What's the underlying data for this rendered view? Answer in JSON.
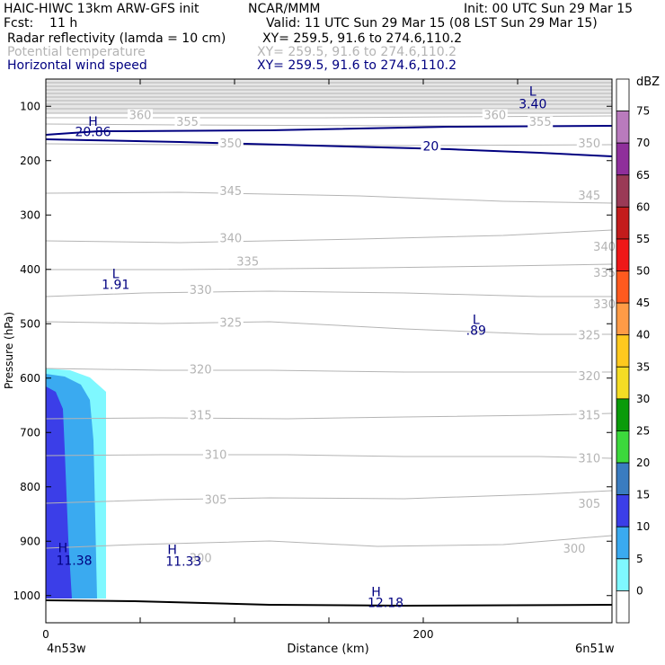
{
  "header": {
    "line1_left": "HAIC-HIWC 13km ARW-GFS init",
    "line1_mid": "NCAR/MMM",
    "line1_right": "Init: 00 UTC Sun 29 Mar 15",
    "line2_left": "Fcst:    11 h",
    "line2_right": "Valid: 11 UTC Sun 29 Mar 15 (08 LST Sun 29 Mar 15)",
    "field1": "Radar reflectivity (lamda = 10 cm)",
    "field1_xy": "XY= 259.5, 91.6 to 274.6,110.2",
    "field2": "Potential temperature",
    "field2_xy": "XY= 259.5, 91.6 to 274.6,110.2",
    "field3": "Horizontal wind speed",
    "field3_xy": "XY= 259.5, 91.6 to 274.6,110.2"
  },
  "chart_data": {
    "type": "cross-section",
    "xlabel": "Distance (km)",
    "ylabel": "Pressure (hPa)",
    "x_start_label": "4n53w",
    "x_end_label": "6n51w",
    "xlim": [
      0,
      300
    ],
    "x_ticks": [
      0,
      200
    ],
    "ylim_hpa": [
      50,
      1050
    ],
    "y_ticks": [
      100,
      200,
      300,
      400,
      500,
      600,
      700,
      800,
      900,
      1000
    ],
    "colorbar": {
      "unit": "dBZ",
      "levels": [
        75,
        70,
        65,
        60,
        55,
        50,
        45,
        40,
        35,
        30,
        25,
        20,
        15,
        10,
        5,
        0
      ],
      "colors": [
        "#ffffff",
        "#b97bbd",
        "#8f2f9b",
        "#9a3a56",
        "#c31c1c",
        "#ef1818",
        "#ff5a1e",
        "#ff9b46",
        "#ffc91e",
        "#f4dc24",
        "#0a9b0a",
        "#3cd83c",
        "#3a7cc0",
        "#3b3ee8",
        "#3aaaf0",
        "#7ff8ff",
        "#ffffff"
      ]
    },
    "theta_labels": [
      {
        "text": "360",
        "x": 50,
        "p": 120
      },
      {
        "text": "355",
        "x": 75,
        "p": 133
      },
      {
        "text": "350",
        "x": 98,
        "p": 172
      },
      {
        "text": "345",
        "x": 98,
        "p": 260
      },
      {
        "text": "340",
        "x": 98,
        "p": 347
      },
      {
        "text": "335",
        "x": 107,
        "p": 390
      },
      {
        "text": "330",
        "x": 82,
        "p": 442
      },
      {
        "text": "325",
        "x": 98,
        "p": 502
      },
      {
        "text": "320",
        "x": 82,
        "p": 588
      },
      {
        "text": "315",
        "x": 82,
        "p": 672
      },
      {
        "text": "310",
        "x": 90,
        "p": 745
      },
      {
        "text": "305",
        "x": 90,
        "p": 828
      },
      {
        "text": "300",
        "x": 82,
        "p": 935
      },
      {
        "text": "360",
        "x": 238,
        "p": 120
      },
      {
        "text": "355",
        "x": 262,
        "p": 133
      },
      {
        "text": "350",
        "x": 288,
        "p": 172
      },
      {
        "text": "345",
        "x": 288,
        "p": 268
      },
      {
        "text": "340",
        "x": 296,
        "p": 362
      },
      {
        "text": "335",
        "x": 296,
        "p": 410
      },
      {
        "text": "330",
        "x": 296,
        "p": 468
      },
      {
        "text": "325",
        "x": 288,
        "p": 525
      },
      {
        "text": "320",
        "x": 288,
        "p": 600
      },
      {
        "text": "315",
        "x": 288,
        "p": 672
      },
      {
        "text": "310",
        "x": 288,
        "p": 752
      },
      {
        "text": "305",
        "x": 288,
        "p": 835
      },
      {
        "text": "300",
        "x": 280,
        "p": 918
      }
    ],
    "wind_labels": [
      {
        "text": "20",
        "x": 204,
        "p": 178,
        "kind": "contour"
      },
      {
        "text": "H",
        "x": 25,
        "p": 133,
        "kind": "symbol"
      },
      {
        "text": "20.86",
        "x": 25,
        "p": 152,
        "kind": "value"
      },
      {
        "text": "L",
        "x": 258,
        "p": 77,
        "kind": "symbol"
      },
      {
        "text": "3.40",
        "x": 258,
        "p": 100,
        "kind": "value"
      },
      {
        "text": "L",
        "x": 37,
        "p": 413,
        "kind": "symbol"
      },
      {
        "text": "1.91",
        "x": 37,
        "p": 433,
        "kind": "value"
      },
      {
        "text": "L",
        "x": 228,
        "p": 497,
        "kind": "symbol"
      },
      {
        "text": ".89",
        "x": 228,
        "p": 517,
        "kind": "value"
      },
      {
        "text": "H",
        "x": 9,
        "p": 917,
        "kind": "symbol"
      },
      {
        "text": "11.38",
        "x": 15,
        "p": 940,
        "kind": "value"
      },
      {
        "text": "H",
        "x": 67,
        "p": 920,
        "kind": "symbol"
      },
      {
        "text": "11.33",
        "x": 73,
        "p": 942,
        "kind": "value"
      },
      {
        "text": "H",
        "x": 175,
        "p": 998,
        "kind": "symbol"
      },
      {
        "text": "12.18",
        "x": 180,
        "p": 1018,
        "kind": "value"
      }
    ]
  }
}
